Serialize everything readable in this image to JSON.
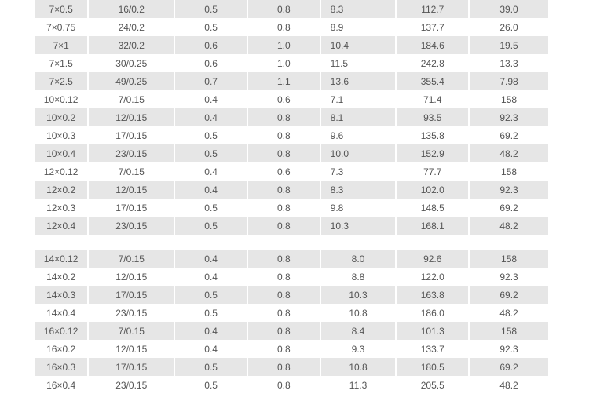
{
  "tables": [
    {
      "rows": [
        [
          "7×0.5",
          "16/0.2",
          "0.5",
          "0.8",
          "8.3",
          "112.7",
          "39.0"
        ],
        [
          "7×0.75",
          "24/0.2",
          "0.5",
          "0.8",
          "8.9",
          "137.7",
          "26.0"
        ],
        [
          "7×1",
          "32/0.2",
          "0.6",
          "1.0",
          "10.4",
          "184.6",
          "19.5"
        ],
        [
          "7×1.5",
          "30/0.25",
          "0.6",
          "1.0",
          "11.5",
          "242.8",
          "13.3"
        ],
        [
          "7×2.5",
          "49/0.25",
          "0.7",
          "1.1",
          "13.6",
          "355.4",
          "7.98"
        ],
        [
          "10×0.12",
          "7/0.15",
          "0.4",
          "0.6",
          "7.1",
          "71.4",
          "158"
        ],
        [
          "10×0.2",
          "12/0.15",
          "0.4",
          "0.8",
          "8.1",
          "93.5",
          "92.3"
        ],
        [
          "10×0.3",
          "17/0.15",
          "0.5",
          "0.8",
          "9.6",
          "135.8",
          "69.2"
        ],
        [
          "10×0.4",
          "23/0.15",
          "0.5",
          "0.8",
          "10.0",
          "152.9",
          "48.2"
        ],
        [
          "12×0.12",
          "7/0.15",
          "0.4",
          "0.6",
          "7.3",
          "77.7",
          "158"
        ],
        [
          "12×0.2",
          "12/0.15",
          "0.4",
          "0.8",
          "8.3",
          "102.0",
          "92.3"
        ],
        [
          "12×0.3",
          "17/0.15",
          "0.5",
          "0.8",
          "9.8",
          "148.5",
          "69.2"
        ],
        [
          "12×0.4",
          "23/0.15",
          "0.5",
          "0.8",
          "10.3",
          "168.1",
          "48.2"
        ]
      ]
    },
    {
      "rows": [
        [
          "14×0.12",
          "7/0.15",
          "0.4",
          "0.8",
          "8.0",
          "92.6",
          "158"
        ],
        [
          "14×0.2",
          "12/0.15",
          "0.4",
          "0.8",
          "8.8",
          "122.0",
          "92.3"
        ],
        [
          "14×0.3",
          "17/0.15",
          "0.5",
          "0.8",
          "10.3",
          "163.8",
          "69.2"
        ],
        [
          "14×0.4",
          "23/0.15",
          "0.5",
          "0.8",
          "10.8",
          "186.0",
          "48.2"
        ],
        [
          "16×0.12",
          "7/0.15",
          "0.4",
          "0.8",
          "8.4",
          "101.3",
          "158"
        ],
        [
          "16×0.2",
          "12/0.15",
          "0.4",
          "0.8",
          "9.3",
          "133.7",
          "92.3"
        ],
        [
          "16×0.3",
          "17/0.15",
          "0.5",
          "0.8",
          "10.8",
          "180.5",
          "69.2"
        ],
        [
          "16×0.4",
          "23/0.15",
          "0.5",
          "0.8",
          "11.3",
          "205.5",
          "48.2"
        ]
      ]
    }
  ]
}
